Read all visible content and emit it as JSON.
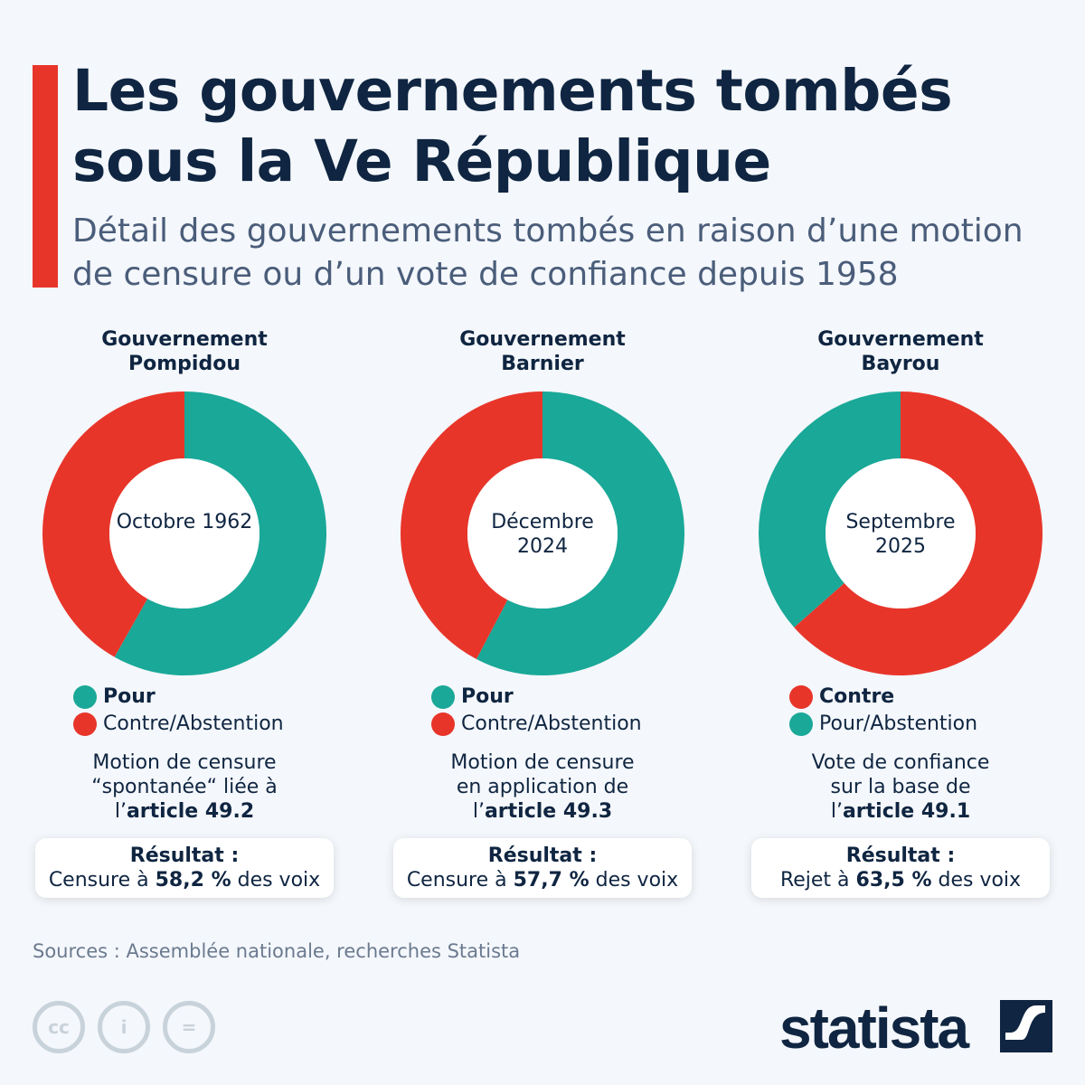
{
  "title": "Les gouvernements tombés sous la Ve République",
  "subtitle": "Détail des gouvernements tombés en raison d’une motion de censure ou d’un vote de confiance depuis 1958",
  "colors": {
    "pour": "#1aa898",
    "contre": "#e8352a",
    "text": "#0f2541"
  },
  "chart_data": [
    {
      "type": "pie",
      "title": "Gouvernement Pompidou",
      "center_label": "Octobre 1962",
      "series": [
        {
          "name": "Pour",
          "value": 58.2,
          "color": "#1aa898"
        },
        {
          "name": "Contre/Abstention",
          "value": 41.8,
          "color": "#e8352a"
        }
      ],
      "desc": {
        "pre": "Motion de censure “spontanée“ liée à l’",
        "bold": "article 49.2"
      },
      "result": {
        "label": "Résultat :",
        "pre": "Censure à ",
        "bold": "58,2 %",
        "post": " des voix"
      }
    },
    {
      "type": "pie",
      "title": "Gouvernement Barnier",
      "center_label": "Décembre 2024",
      "series": [
        {
          "name": "Pour",
          "value": 57.7,
          "color": "#1aa898"
        },
        {
          "name": "Contre/Abstention",
          "value": 42.3,
          "color": "#e8352a"
        }
      ],
      "desc": {
        "pre": "Motion de censure en application de l’",
        "bold": "article 49.3"
      },
      "result": {
        "label": "Résultat :",
        "pre": "Censure à ",
        "bold": "57,7 %",
        "post": " des voix"
      }
    },
    {
      "type": "pie",
      "title": "Gouvernement Bayrou",
      "center_label": "Septembre 2025",
      "series": [
        {
          "name": "Contre",
          "value": 63.5,
          "color": "#e8352a"
        },
        {
          "name": "Pour/Abstention",
          "value": 36.5,
          "color": "#1aa898"
        }
      ],
      "desc": {
        "pre": "Vote de confiance sur la base de l’",
        "bold": "article 49.1"
      },
      "result": {
        "label": "Résultat :",
        "pre": "Rejet à ",
        "bold": "63,5 %",
        "post": " des voix"
      }
    }
  ],
  "source": "Sources : Assemblée nationale, recherches Statista",
  "license_icons": [
    "cc-icon",
    "attribution-icon",
    "no-derivatives-icon"
  ],
  "brand": "statista"
}
